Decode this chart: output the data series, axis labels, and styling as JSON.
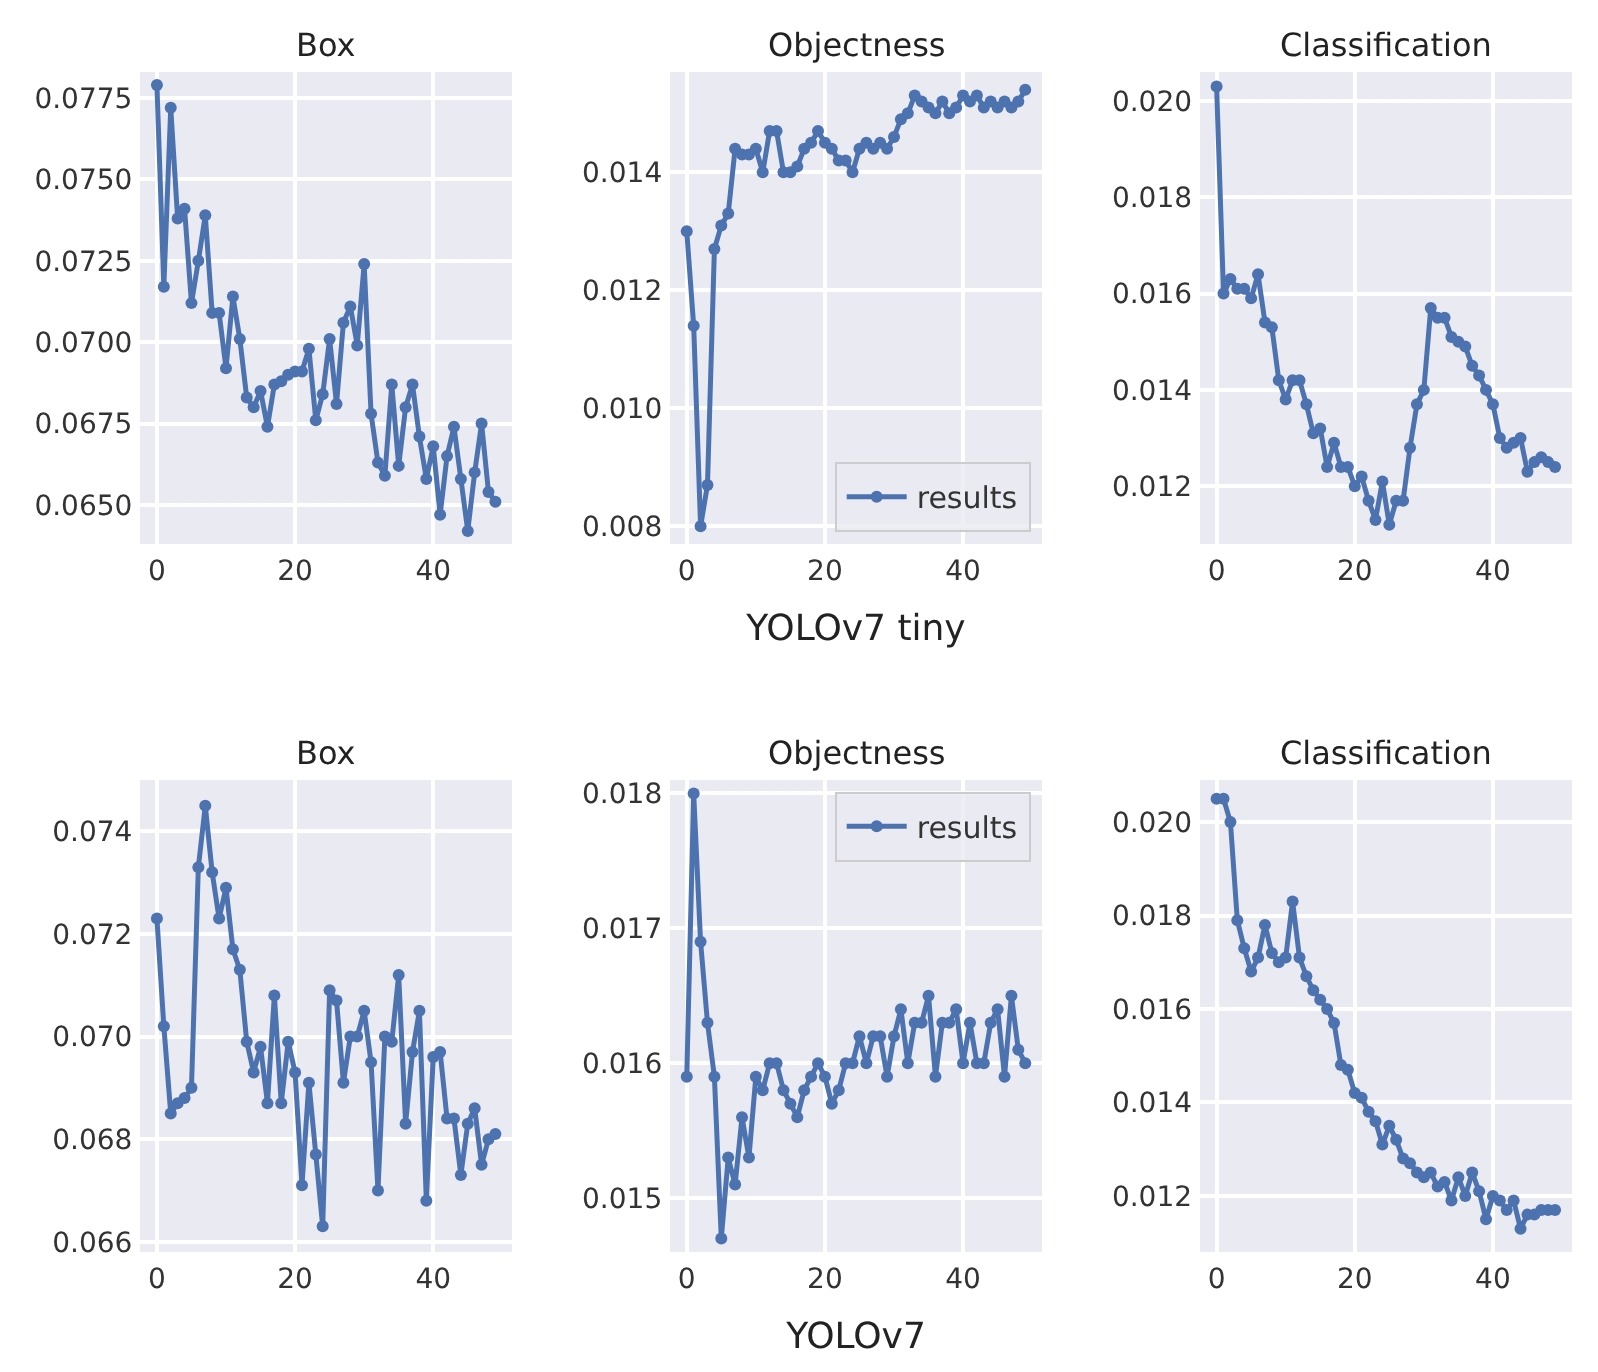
{
  "chart_data": [
    {
      "type": "line",
      "title": "Box",
      "marker": "circle",
      "grid": true,
      "x": [
        0,
        1,
        2,
        3,
        4,
        5,
        6,
        7,
        8,
        9,
        10,
        11,
        12,
        13,
        14,
        15,
        16,
        17,
        18,
        19,
        20,
        21,
        22,
        23,
        24,
        25,
        26,
        27,
        28,
        29,
        30,
        31,
        32,
        33,
        34,
        35,
        36,
        37,
        38,
        39,
        40,
        41,
        42,
        43,
        44,
        45,
        46,
        47,
        48,
        49
      ],
      "xlim": [
        -2.45,
        51.45
      ],
      "xticks": [
        0,
        20,
        40
      ],
      "ylim": [
        0.0638,
        0.0783
      ],
      "yticks": [
        {
          "value": 0.065,
          "label": "0.0650"
        },
        {
          "value": 0.0675,
          "label": "0.0675"
        },
        {
          "value": 0.07,
          "label": "0.0700"
        },
        {
          "value": 0.0725,
          "label": "0.0725"
        },
        {
          "value": 0.075,
          "label": "0.0750"
        },
        {
          "value": 0.0775,
          "label": "0.0775"
        }
      ],
      "series": [
        {
          "color": "#4c72b0",
          "values": [
            0.0779,
            0.0717,
            0.0772,
            0.0738,
            0.0741,
            0.0712,
            0.0725,
            0.0739,
            0.0709,
            0.0709,
            0.0692,
            0.0714,
            0.0701,
            0.0683,
            0.068,
            0.0685,
            0.0674,
            0.0687,
            0.0688,
            0.069,
            0.0691,
            0.0691,
            0.0698,
            0.0676,
            0.0684,
            0.0701,
            0.0681,
            0.0706,
            0.0711,
            0.0699,
            0.0724,
            0.0678,
            0.0663,
            0.0659,
            0.0687,
            0.0662,
            0.068,
            0.0687,
            0.0671,
            0.0658,
            0.0668,
            0.0647,
            0.0665,
            0.0674,
            0.0658,
            0.0642,
            0.066,
            0.0675,
            0.0654,
            0.0651
          ]
        }
      ]
    },
    {
      "type": "line",
      "title": "Objectness",
      "xlabel": "YOLOv7 tiny",
      "marker": "circle",
      "grid": true,
      "legend": "bottom right",
      "x": [
        0,
        1,
        2,
        3,
        4,
        5,
        6,
        7,
        8,
        9,
        10,
        11,
        12,
        13,
        14,
        15,
        16,
        17,
        18,
        19,
        20,
        21,
        22,
        23,
        24,
        25,
        26,
        27,
        28,
        29,
        30,
        31,
        32,
        33,
        34,
        35,
        36,
        37,
        38,
        39,
        40,
        41,
        42,
        43,
        44,
        45,
        46,
        47,
        48,
        49
      ],
      "xlim": [
        -2.45,
        51.45
      ],
      "xticks": [
        0,
        20,
        40
      ],
      "ylim": [
        0.0077,
        0.0157
      ],
      "yticks": [
        0.008,
        {
          "value": 0.01,
          "label": "0.010"
        },
        0.012,
        0.014
      ],
      "series": [
        {
          "name": "results",
          "color": "#4c72b0",
          "values": [
            0.013,
            0.0114,
            0.008,
            0.0087,
            0.0127,
            0.0131,
            0.0133,
            0.0144,
            0.0143,
            0.0143,
            0.0144,
            0.014,
            0.0147,
            0.0147,
            0.014,
            0.014,
            0.0141,
            0.0144,
            0.0145,
            0.0147,
            0.0145,
            0.0144,
            0.0142,
            0.0142,
            0.014,
            0.0144,
            0.0145,
            0.0144,
            0.0145,
            0.0144,
            0.0146,
            0.0149,
            0.015,
            0.0153,
            0.0152,
            0.0151,
            0.015,
            0.0152,
            0.015,
            0.0151,
            0.0153,
            0.0152,
            0.0153,
            0.0151,
            0.0152,
            0.0151,
            0.0152,
            0.0151,
            0.0152,
            0.0154
          ]
        }
      ]
    },
    {
      "type": "line",
      "title": "Classification",
      "marker": "circle",
      "grid": true,
      "x": [
        0,
        1,
        2,
        3,
        4,
        5,
        6,
        7,
        8,
        9,
        10,
        11,
        12,
        13,
        14,
        15,
        16,
        17,
        18,
        19,
        20,
        21,
        22,
        23,
        24,
        25,
        26,
        27,
        28,
        29,
        30,
        31,
        32,
        33,
        34,
        35,
        36,
        37,
        38,
        39,
        40,
        41,
        42,
        43,
        44,
        45,
        46,
        47,
        48,
        49
      ],
      "xlim": [
        -2.45,
        51.45
      ],
      "xticks": [
        0,
        20,
        40
      ],
      "ylim": [
        0.0108,
        0.0206
      ],
      "yticks": [
        0.012,
        0.014,
        0.016,
        0.018,
        {
          "value": 0.02,
          "label": "0.020"
        }
      ],
      "series": [
        {
          "color": "#4c72b0",
          "values": [
            0.0203,
            0.016,
            0.0163,
            0.0161,
            0.0161,
            0.0159,
            0.0164,
            0.0154,
            0.0153,
            0.0142,
            0.0138,
            0.0142,
            0.0142,
            0.0137,
            0.0131,
            0.0132,
            0.0124,
            0.0129,
            0.0124,
            0.0124,
            0.012,
            0.0122,
            0.0117,
            0.0113,
            0.0121,
            0.0112,
            0.0117,
            0.0117,
            0.0128,
            0.0137,
            0.014,
            0.0157,
            0.0155,
            0.0155,
            0.0151,
            0.015,
            0.0149,
            0.0145,
            0.0143,
            0.014,
            0.0137,
            0.013,
            0.0128,
            0.0129,
            0.013,
            0.0123,
            0.0125,
            0.0126,
            0.0125,
            0.0124
          ]
        }
      ]
    },
    {
      "type": "line",
      "title": "Box",
      "marker": "circle",
      "grid": true,
      "x": [
        0,
        1,
        2,
        3,
        4,
        5,
        6,
        7,
        8,
        9,
        10,
        11,
        12,
        13,
        14,
        15,
        16,
        17,
        18,
        19,
        20,
        21,
        22,
        23,
        24,
        25,
        26,
        27,
        28,
        29,
        30,
        31,
        32,
        33,
        34,
        35,
        36,
        37,
        38,
        39,
        40,
        41,
        42,
        43,
        44,
        45,
        46,
        47,
        48,
        49
      ],
      "xlim": [
        -2.45,
        51.45
      ],
      "xticks": [
        0,
        20,
        40
      ],
      "ylim": [
        0.0658,
        0.075
      ],
      "yticks": [
        0.066,
        0.068,
        {
          "value": 0.07,
          "label": "0.070"
        },
        0.072,
        0.074
      ],
      "series": [
        {
          "color": "#4c72b0",
          "values": [
            0.0723,
            0.0702,
            0.0685,
            0.0687,
            0.0688,
            0.069,
            0.0733,
            0.0745,
            0.0732,
            0.0723,
            0.0729,
            0.0717,
            0.0713,
            0.0699,
            0.0693,
            0.0698,
            0.0687,
            0.0708,
            0.0687,
            0.0699,
            0.0693,
            0.0671,
            0.0691,
            0.0677,
            0.0663,
            0.0709,
            0.0707,
            0.0691,
            0.07,
            0.07,
            0.0705,
            0.0695,
            0.067,
            0.07,
            0.0699,
            0.0712,
            0.0683,
            0.0697,
            0.0705,
            0.0668,
            0.0696,
            0.0697,
            0.0684,
            0.0684,
            0.0673,
            0.0683,
            0.0686,
            0.0675,
            0.068,
            0.0681
          ]
        }
      ]
    },
    {
      "type": "line",
      "title": "Objectness",
      "xlabel": "YOLOv7",
      "marker": "circle",
      "grid": true,
      "legend": "top right",
      "x": [
        0,
        1,
        2,
        3,
        4,
        5,
        6,
        7,
        8,
        9,
        10,
        11,
        12,
        13,
        14,
        15,
        16,
        17,
        18,
        19,
        20,
        21,
        22,
        23,
        24,
        25,
        26,
        27,
        28,
        29,
        30,
        31,
        32,
        33,
        34,
        35,
        36,
        37,
        38,
        39,
        40,
        41,
        42,
        43,
        44,
        45,
        46,
        47,
        48,
        49
      ],
      "xlim": [
        -2.45,
        51.45
      ],
      "xticks": [
        0,
        20,
        40
      ],
      "ylim": [
        0.0146,
        0.0181
      ],
      "yticks": [
        0.015,
        0.016,
        0.017,
        0.018
      ],
      "series": [
        {
          "name": "results",
          "color": "#4c72b0",
          "values": [
            0.0159,
            0.018,
            0.0169,
            0.0163,
            0.0159,
            0.0147,
            0.0153,
            0.0151,
            0.0156,
            0.0153,
            0.0159,
            0.0158,
            0.016,
            0.016,
            0.0158,
            0.0157,
            0.0156,
            0.0158,
            0.0159,
            0.016,
            0.0159,
            0.0157,
            0.0158,
            0.016,
            0.016,
            0.0162,
            0.016,
            0.0162,
            0.0162,
            0.0159,
            0.0162,
            0.0164,
            0.016,
            0.0163,
            0.0163,
            0.0165,
            0.0159,
            0.0163,
            0.0163,
            0.0164,
            0.016,
            0.0163,
            0.016,
            0.016,
            0.0163,
            0.0164,
            0.0159,
            0.0165,
            0.0161,
            0.016
          ]
        }
      ]
    },
    {
      "type": "line",
      "title": "Classification",
      "marker": "circle",
      "grid": true,
      "x": [
        0,
        1,
        2,
        3,
        4,
        5,
        6,
        7,
        8,
        9,
        10,
        11,
        12,
        13,
        14,
        15,
        16,
        17,
        18,
        19,
        20,
        21,
        22,
        23,
        24,
        25,
        26,
        27,
        28,
        29,
        30,
        31,
        32,
        33,
        34,
        35,
        36,
        37,
        38,
        39,
        40,
        41,
        42,
        43,
        44,
        45,
        46,
        47,
        48,
        49
      ],
      "xlim": [
        -2.45,
        51.45
      ],
      "xticks": [
        0,
        20,
        40
      ],
      "ylim": [
        0.0108,
        0.0209
      ],
      "yticks": [
        0.012,
        0.014,
        0.016,
        0.018,
        {
          "value": 0.02,
          "label": "0.020"
        }
      ],
      "series": [
        {
          "color": "#4c72b0",
          "values": [
            0.0205,
            0.0205,
            0.02,
            0.0179,
            0.0173,
            0.0168,
            0.0171,
            0.0178,
            0.0172,
            0.017,
            0.0171,
            0.0183,
            0.0171,
            0.0167,
            0.0164,
            0.0162,
            0.016,
            0.0157,
            0.0148,
            0.0147,
            0.0142,
            0.0141,
            0.0138,
            0.0136,
            0.0131,
            0.0135,
            0.0132,
            0.0128,
            0.0127,
            0.0125,
            0.0124,
            0.0125,
            0.0122,
            0.0123,
            0.0119,
            0.0124,
            0.012,
            0.0125,
            0.0121,
            0.0115,
            0.012,
            0.0119,
            0.0117,
            0.0119,
            0.0113,
            0.0116,
            0.0116,
            0.0117,
            0.0117,
            0.0117
          ]
        }
      ]
    }
  ]
}
